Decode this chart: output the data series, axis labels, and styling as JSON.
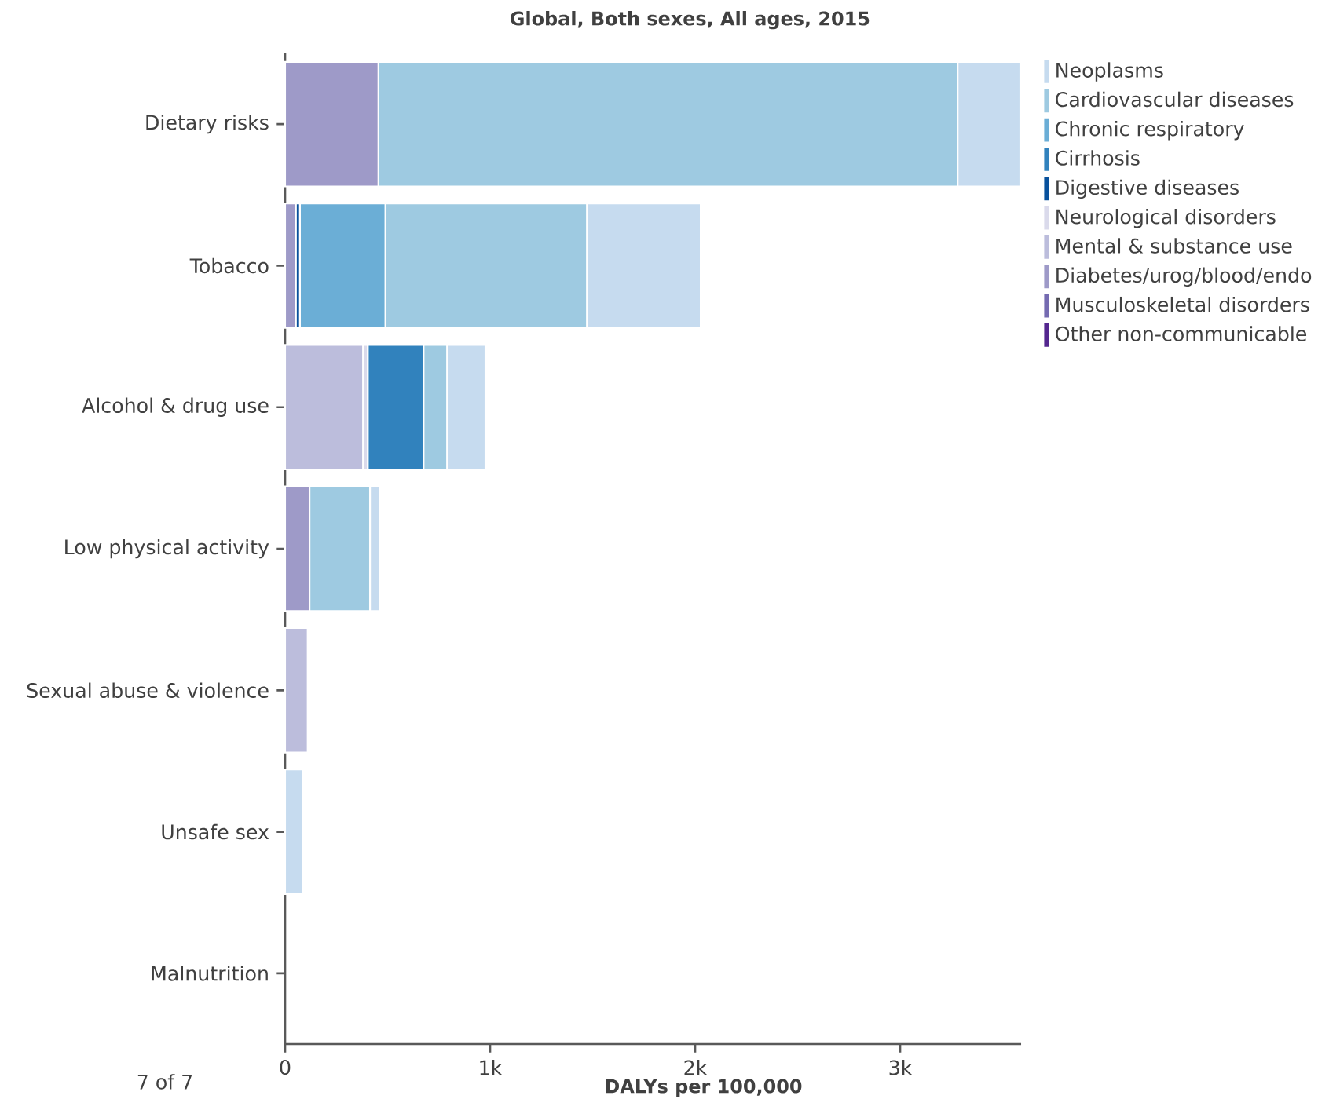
{
  "chart_data": {
    "type": "bar",
    "title": "Global, Both sexes, All ages, 2015",
    "xlabel": "DALYs per 100,000",
    "orientation": "horizontal",
    "stacked": true,
    "legend": "top right",
    "categories": [
      "Dietary risks",
      "Tobacco",
      "Alcohol & drug use",
      "Low physical activity",
      "Sexual abuse & violence",
      "Unsafe sex",
      "Malnutrition"
    ],
    "xlim": [
      0,
      3590
    ],
    "xticks": [
      0,
      {
        "value": 1000,
        "label": "1k"
      },
      {
        "value": 2000,
        "label": "2k"
      },
      {
        "value": 3000,
        "label": "3k"
      }
    ],
    "series": [
      {
        "name": "Other non-communicable",
        "color": "#54278f",
        "values": [
          null,
          null,
          null,
          null,
          null,
          null,
          null
        ]
      },
      {
        "name": "Musculoskeletal disorders",
        "color": "#756bb1",
        "values": [
          null,
          null,
          null,
          null,
          null,
          null,
          null
        ]
      },
      {
        "name": "Diabetes/urog/blood/endo",
        "color": "#9e9ac8",
        "values": [
          455,
          52,
          null,
          119,
          null,
          null,
          null
        ]
      },
      {
        "name": "Mental & substance use",
        "color": "#bcbddc",
        "values": [
          null,
          null,
          380,
          null,
          110,
          null,
          null
        ]
      },
      {
        "name": "Neurological disorders",
        "color": "#dadaeb",
        "values": [
          null,
          null,
          23,
          null,
          null,
          null,
          null
        ]
      },
      {
        "name": "Digestive diseases",
        "color": "#08519c",
        "values": [
          null,
          20,
          null,
          null,
          null,
          null,
          null
        ]
      },
      {
        "name": "Cirrhosis",
        "color": "#3182bd",
        "values": [
          null,
          null,
          272,
          null,
          null,
          null,
          null
        ]
      },
      {
        "name": "Chronic respiratory",
        "color": "#6baed6",
        "values": [
          null,
          417,
          null,
          null,
          null,
          null,
          null
        ]
      },
      {
        "name": "Cardiovascular diseases",
        "color": "#9ecae1",
        "values": [
          2825,
          983,
          115,
          295,
          null,
          null,
          null
        ]
      },
      {
        "name": "Neoplasms",
        "color": "#c6dbef",
        "values": [
          306,
          555,
          187,
          46,
          null,
          88,
          null
        ]
      }
    ],
    "annotations": [
      "7 of 7"
    ]
  }
}
